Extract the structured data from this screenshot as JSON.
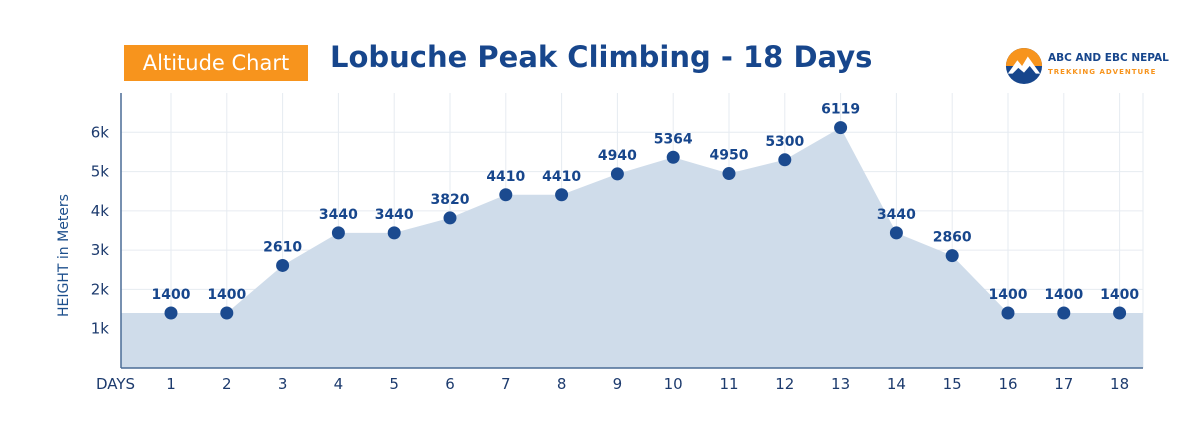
{
  "header": {
    "badge": "Altitude Chart",
    "title": "Lobuche Peak Climbing - 18 Days"
  },
  "logo": {
    "name": "ABC AND EBC NEPAL",
    "tagline": "TREKKING ADVENTURE"
  },
  "colors": {
    "accent": "#f7941d",
    "brand": "#17468c",
    "area": "#cfdcea",
    "marker": "#1b4a8f",
    "grid": "#e6ebf1"
  },
  "chart_data": {
    "type": "area",
    "title": "Lobuche Peak Climbing - 18 Days",
    "xlabel": "DAYS",
    "ylabel": "HEIGHT in Meters",
    "categories": [
      "1",
      "2",
      "3",
      "4",
      "5",
      "6",
      "7",
      "8",
      "9",
      "10",
      "11",
      "12",
      "13",
      "14",
      "15",
      "16",
      "17",
      "18"
    ],
    "series": [
      {
        "values": [
          1400,
          1400,
          2610,
          3440,
          3440,
          3820,
          4410,
          4410,
          4940,
          5364,
          4950,
          5300,
          6119,
          3440,
          2860,
          1400,
          1400,
          1400
        ]
      }
    ],
    "data_labels": [
      "1400",
      "1400",
      "2610",
      "3440",
      "3440",
      "3820",
      "4410",
      "4410",
      "4940",
      "5364",
      "4950",
      "5300",
      "6119",
      "3440",
      "2860",
      "1400",
      "1400",
      "1400"
    ],
    "yticks": [
      {
        "value": 1000,
        "label": "1k"
      },
      {
        "value": 2000,
        "label": "2k"
      },
      {
        "value": 3000,
        "label": "3k"
      },
      {
        "value": 4000,
        "label": "4k"
      },
      {
        "value": 5000,
        "label": "5k"
      },
      {
        "value": 6000,
        "label": "6k"
      }
    ],
    "ylim": [
      0,
      7000
    ],
    "grid": true,
    "markers": true
  }
}
